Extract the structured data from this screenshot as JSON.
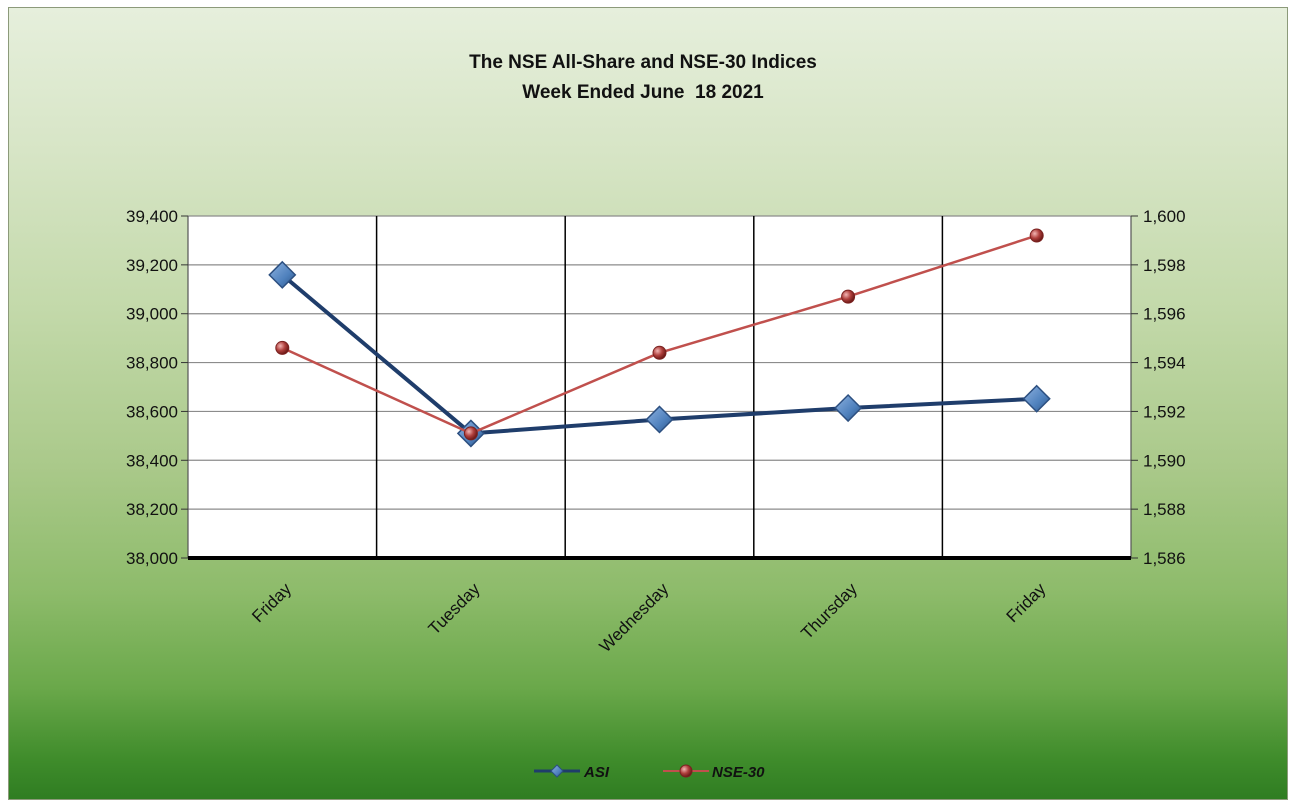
{
  "chart_data": {
    "type": "line",
    "title": "The NSE All-Share and NSE-30 Indices",
    "subtitle": "Week Ended June  18 2021",
    "categories": [
      "Friday",
      "Tuesday",
      "Wednesday",
      "Thursday",
      "Friday"
    ],
    "y_left": {
      "min": 38000,
      "max": 39400,
      "step": 200,
      "ticks": [
        "38,000",
        "38,200",
        "38,400",
        "38,600",
        "38,800",
        "39,000",
        "39,200",
        "39,400"
      ]
    },
    "y_right": {
      "min": 1586,
      "max": 1600,
      "step": 2,
      "ticks": [
        "1,586",
        "1,588",
        "1,590",
        "1,592",
        "1,594",
        "1,596",
        "1,598",
        "1,600"
      ]
    },
    "series": [
      {
        "name": "ASI",
        "axis": "left",
        "color": "#1f3d6b",
        "marker_color": "#4f81bd",
        "marker": "diamond",
        "values": [
          39159,
          38510,
          38567,
          38614,
          38652
        ]
      },
      {
        "name": "NSE-30",
        "axis": "right",
        "color": "#c0504d",
        "marker_color": "#9b2d2a",
        "marker": "circle",
        "values": [
          1594.6,
          1591.1,
          1594.4,
          1596.7,
          1599.2
        ]
      }
    ],
    "grid": true,
    "legend": "bottom"
  }
}
